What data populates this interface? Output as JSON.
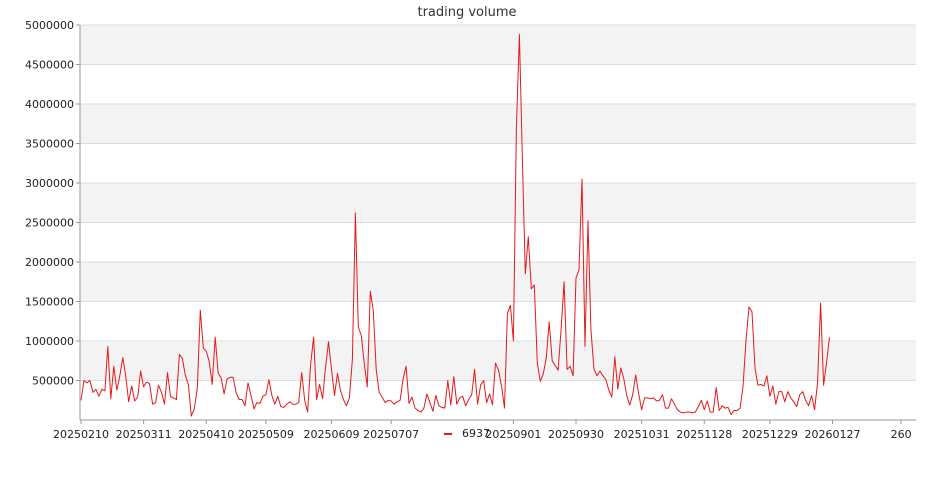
{
  "chart_data": {
    "type": "line",
    "title": "trading volume",
    "xlabel": "",
    "ylabel": "",
    "ylim": [
      0,
      5000000
    ],
    "y_ticks": [
      500000,
      1000000,
      1500000,
      2000000,
      2500000,
      3000000,
      3500000,
      4000000,
      4500000,
      5000000
    ],
    "x_tick_labels": [
      "20250210",
      "20250311",
      "20250410",
      "20250509",
      "20250609",
      "20250707",
      "20250901",
      "20250930",
      "20251031",
      "20251128",
      "20251229",
      "20260127",
      "260"
    ],
    "x_tick_positions": [
      0,
      21,
      42,
      62,
      84,
      104,
      145,
      166,
      188,
      209,
      231,
      252,
      275
    ],
    "grid": true,
    "legend": "bottom-center",
    "colors": {
      "series": "#e31a1c",
      "band": "#f3f3f3",
      "grid": "#dddddd",
      "axis": "#999999"
    },
    "series": [
      {
        "name": "6937",
        "values": [
          250000,
          500000,
          470000,
          500000,
          350000,
          390000,
          300000,
          390000,
          370000,
          930000,
          270000,
          680000,
          380000,
          560000,
          790000,
          560000,
          230000,
          430000,
          240000,
          290000,
          620000,
          420000,
          480000,
          460000,
          200000,
          220000,
          440000,
          350000,
          200000,
          600000,
          300000,
          280000,
          260000,
          830000,
          780000,
          560000,
          450000,
          50000,
          140000,
          400000,
          1390000,
          910000,
          870000,
          740000,
          450000,
          1050000,
          590000,
          530000,
          330000,
          520000,
          540000,
          540000,
          350000,
          260000,
          260000,
          180000,
          470000,
          310000,
          140000,
          220000,
          210000,
          300000,
          320000,
          510000,
          310000,
          200000,
          300000,
          170000,
          160000,
          200000,
          230000,
          200000,
          200000,
          220000,
          600000,
          250000,
          100000,
          700000,
          1050000,
          260000,
          450000,
          270000,
          660000,
          990000,
          640000,
          310000,
          590000,
          380000,
          260000,
          180000,
          280000,
          770000,
          2620000,
          1180000,
          1070000,
          710000,
          420000,
          1630000,
          1380000,
          640000,
          350000,
          290000,
          220000,
          250000,
          240000,
          200000,
          230000,
          250000,
          520000,
          680000,
          210000,
          290000,
          150000,
          120000,
          100000,
          150000,
          330000,
          220000,
          110000,
          310000,
          180000,
          160000,
          150000,
          500000,
          190000,
          550000,
          200000,
          280000,
          300000,
          180000,
          260000,
          320000,
          640000,
          200000,
          440000,
          500000,
          220000,
          330000,
          190000,
          720000,
          630000,
          430000,
          150000,
          1350000,
          1450000,
          1000000,
          3700000,
          4880000,
          3300000,
          1850000,
          2320000,
          1660000,
          1710000,
          720000,
          490000,
          580000,
          780000,
          1240000,
          750000,
          690000,
          630000,
          1150000,
          1750000,
          640000,
          680000,
          560000,
          1800000,
          1900000,
          3050000,
          930000,
          2520000,
          1150000,
          650000,
          560000,
          620000,
          560000,
          510000,
          380000,
          290000,
          800000,
          390000,
          660000,
          520000,
          310000,
          190000,
          320000,
          570000,
          330000,
          130000,
          280000,
          280000,
          270000,
          280000,
          240000,
          250000,
          320000,
          150000,
          150000,
          270000,
          200000,
          130000,
          100000,
          90000,
          100000,
          100000,
          90000,
          100000,
          170000,
          250000,
          130000,
          240000,
          100000,
          100000,
          410000,
          120000,
          180000,
          150000,
          160000,
          70000,
          120000,
          120000,
          150000,
          420000,
          1010000,
          1430000,
          1370000,
          660000,
          440000,
          450000,
          430000,
          560000,
          300000,
          430000,
          200000,
          360000,
          360000,
          230000,
          360000,
          280000,
          230000,
          170000,
          320000,
          360000,
          250000,
          180000,
          310000,
          130000,
          480000,
          1480000,
          440000,
          720000,
          1050000
        ]
      }
    ]
  }
}
